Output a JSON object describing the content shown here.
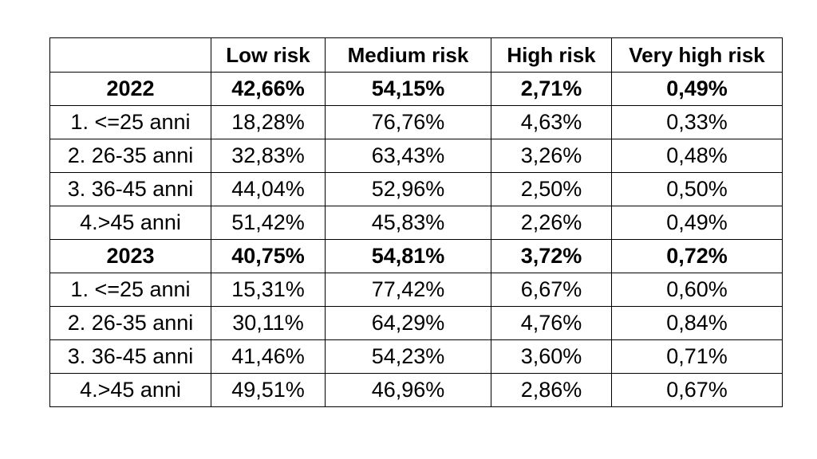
{
  "table": {
    "columns": [
      "",
      "Low risk",
      "Medium risk",
      "High risk",
      "Very high risk"
    ],
    "rows": [
      {
        "label": "2022",
        "values": [
          "42,66%",
          "54,15%",
          "2,71%",
          "0,49%"
        ],
        "bold": true
      },
      {
        "label": "1. <=25 anni",
        "values": [
          "18,28%",
          "76,76%",
          "4,63%",
          "0,33%"
        ],
        "bold": false
      },
      {
        "label": "2. 26-35 anni",
        "values": [
          "32,83%",
          "63,43%",
          "3,26%",
          "0,48%"
        ],
        "bold": false
      },
      {
        "label": "3. 36-45 anni",
        "values": [
          "44,04%",
          "52,96%",
          "2,50%",
          "0,50%"
        ],
        "bold": false
      },
      {
        "label": "4.>45 anni",
        "values": [
          "51,42%",
          "45,83%",
          "2,26%",
          "0,49%"
        ],
        "bold": false
      },
      {
        "label": "2023",
        "values": [
          "40,75%",
          "54,81%",
          "3,72%",
          "0,72%"
        ],
        "bold": true
      },
      {
        "label": "1. <=25 anni",
        "values": [
          "15,31%",
          "77,42%",
          "6,67%",
          "0,60%"
        ],
        "bold": false
      },
      {
        "label": "2. 26-35 anni",
        "values": [
          "30,11%",
          "64,29%",
          "4,76%",
          "0,84%"
        ],
        "bold": false
      },
      {
        "label": "3. 36-45 anni",
        "values": [
          "41,46%",
          "54,23%",
          "3,60%",
          "0,71%"
        ],
        "bold": false
      },
      {
        "label": "4.>45 anni",
        "values": [
          "49,51%",
          "46,96%",
          "2,86%",
          "0,67%"
        ],
        "bold": false
      }
    ]
  }
}
